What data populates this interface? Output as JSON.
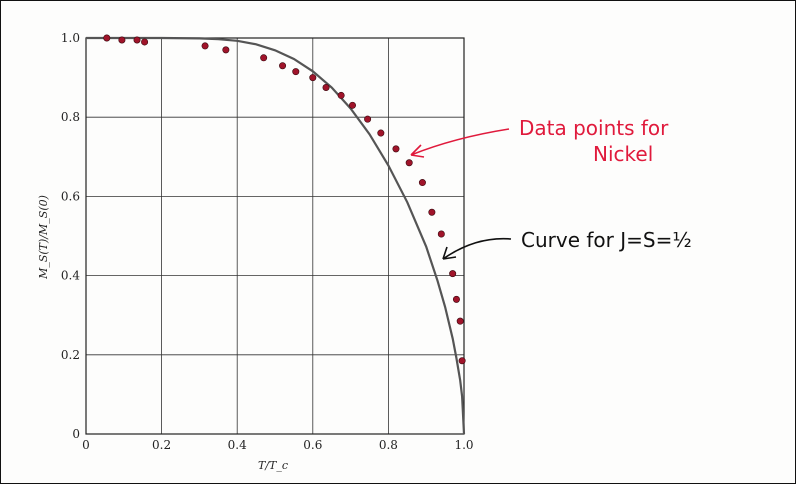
{
  "colors": {
    "points": "#a0142a",
    "curve": "#555555",
    "grid": "#333333",
    "annotation_red": "#e01a3c",
    "annotation_black": "#111111"
  },
  "chart_data": {
    "type": "scatter",
    "title": "",
    "xlabel": "T/T_c",
    "ylabel": "M_S(T)/M_S(0)",
    "xlim": [
      0,
      1.0
    ],
    "ylim": [
      0,
      1.0
    ],
    "grid": true,
    "x_ticks": [
      "0",
      "0.2",
      "0.4",
      "0.6",
      "0.8",
      "1.0"
    ],
    "y_ticks": [
      "0",
      "0.2",
      "0.4",
      "0.6",
      "0.8",
      "1.0"
    ],
    "series": [
      {
        "kind": "points",
        "x": [
          0.055,
          0.095,
          0.135,
          0.155,
          0.315,
          0.37,
          0.47,
          0.52,
          0.555,
          0.6,
          0.635,
          0.675,
          0.705,
          0.745,
          0.78,
          0.82,
          0.855,
          0.89,
          0.915,
          0.94,
          0.97,
          0.98,
          0.99,
          0.995
        ],
        "y": [
          1.0,
          0.995,
          0.995,
          0.99,
          0.98,
          0.97,
          0.95,
          0.93,
          0.915,
          0.9,
          0.875,
          0.855,
          0.83,
          0.795,
          0.76,
          0.72,
          0.685,
          0.635,
          0.56,
          0.505,
          0.405,
          0.34,
          0.285,
          0.185
        ]
      },
      {
        "kind": "curve",
        "x": [
          0.0,
          0.1,
          0.2,
          0.3,
          0.35,
          0.4,
          0.45,
          0.5,
          0.55,
          0.6,
          0.65,
          0.7,
          0.75,
          0.8,
          0.85,
          0.9,
          0.93,
          0.95,
          0.97,
          0.98,
          0.99,
          0.995,
          1.0
        ],
        "y": [
          1.0,
          1.0,
          1.0,
          0.999,
          0.997,
          0.993,
          0.984,
          0.969,
          0.947,
          0.916,
          0.875,
          0.822,
          0.757,
          0.678,
          0.585,
          0.473,
          0.387,
          0.321,
          0.241,
          0.192,
          0.135,
          0.095,
          0.0
        ]
      }
    ],
    "annotations": [
      {
        "text": "Data points for",
        "color": "red"
      },
      {
        "text": "Nickel",
        "color": "red"
      },
      {
        "text": "Curve for J=S=½",
        "color": "black"
      }
    ]
  }
}
